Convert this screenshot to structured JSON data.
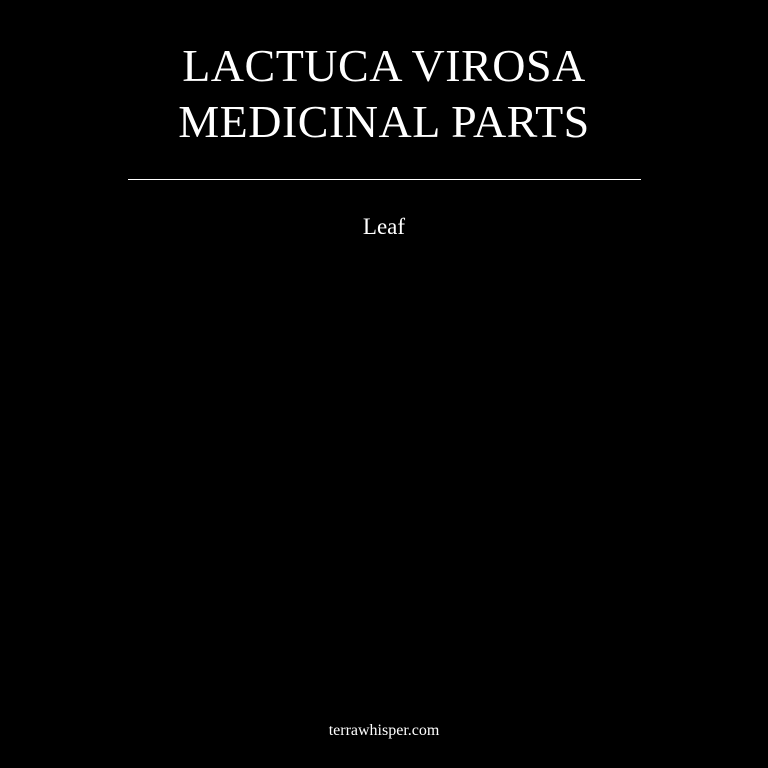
{
  "title": {
    "line1": "LACTUCA VIROSA",
    "line2": "MEDICINAL PARTS"
  },
  "parts": [
    "Leaf"
  ],
  "footer": {
    "site": "terrawhisper.com"
  },
  "colors": {
    "background": "#000000",
    "text": "#ffffff",
    "divider": "#ffffff"
  }
}
